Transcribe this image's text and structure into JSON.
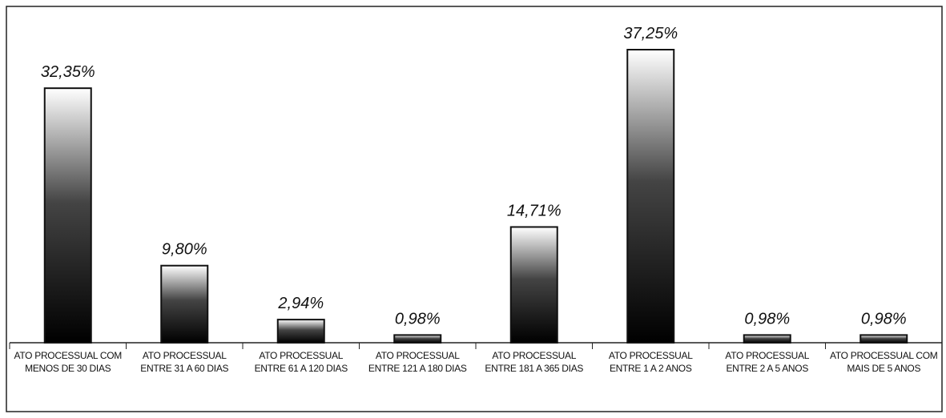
{
  "chart_data": {
    "type": "bar",
    "categories": [
      "ATO PROCESSUAL COM MENOS DE 30 DIAS",
      "ATO PROCESSUAL ENTRE 31 A 60 DIAS",
      "ATO PROCESSUAL ENTRE 61 A 120 DIAS",
      "ATO PROCESSUAL ENTRE 121 A 180 DIAS",
      "ATO PROCESSUAL ENTRE 181 A 365 DIAS",
      "ATO PROCESSUAL ENTRE 1 A 2 ANOS",
      "ATO PROCESSUAL ENTRE 2 A 5 ANOS",
      "ATO PROCESSUAL COM MAIS DE 5 ANOS"
    ],
    "values": [
      32.35,
      9.8,
      2.94,
      0.98,
      14.71,
      37.25,
      0.98,
      0.98
    ],
    "value_labels": [
      "32,35%",
      "9,80%",
      "2,94%",
      "0,98%",
      "14,71%",
      "37,25%",
      "0,98%",
      "0,98%"
    ],
    "color": "#111111"
  }
}
